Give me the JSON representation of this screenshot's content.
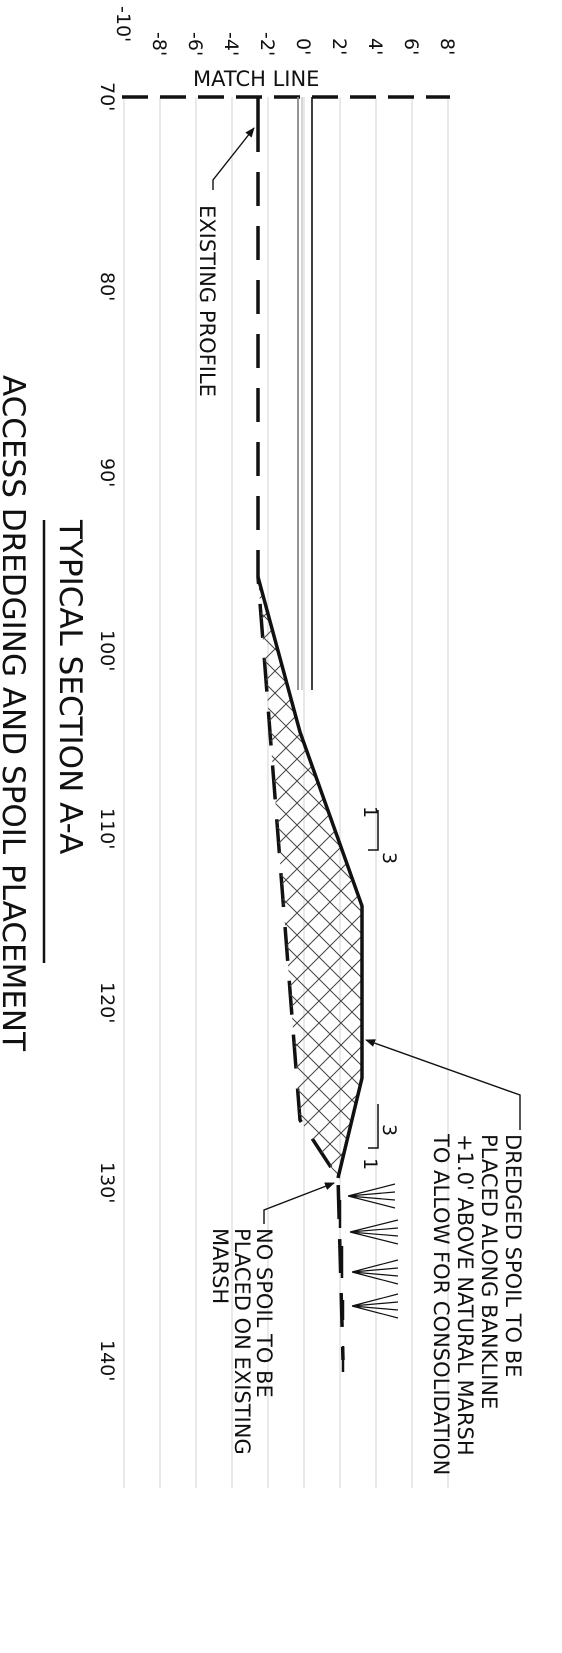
{
  "elevation_labels": [
    "-10'",
    "-8'",
    "-6'",
    "-4'",
    "-2'",
    "0'",
    "2'",
    "4'",
    "6'",
    "8'"
  ],
  "station_labels": [
    "70'",
    "80'",
    "90'",
    "100'",
    "110'",
    "120'",
    "130'",
    "140'"
  ],
  "match_line": "MATCH LINE",
  "annotations": {
    "existing_profile": "EXISTING PROFILE",
    "dredged_spoil": [
      "DREDGED SPOIL TO BE",
      "PLACED ALONG BANKLINE",
      "+1.0' ABOVE NATURAL MARSH",
      "TO ALLOW FOR CONSOLIDATION"
    ],
    "no_spoil": [
      "NO SPOIL TO BE",
      "PLACED ON EXISTING",
      "MARSH"
    ]
  },
  "slopes": [
    {
      "run": "3",
      "rise": "1"
    },
    {
      "run": "3",
      "rise": "1"
    }
  ],
  "title": "TYPICAL SECTION A-A",
  "subtitle": "ACCESS DREDGING AND SPOIL PLACEMENT",
  "colors": {
    "ink": "#111111",
    "grid": "#c8c8c8",
    "hatch": "#444444"
  }
}
